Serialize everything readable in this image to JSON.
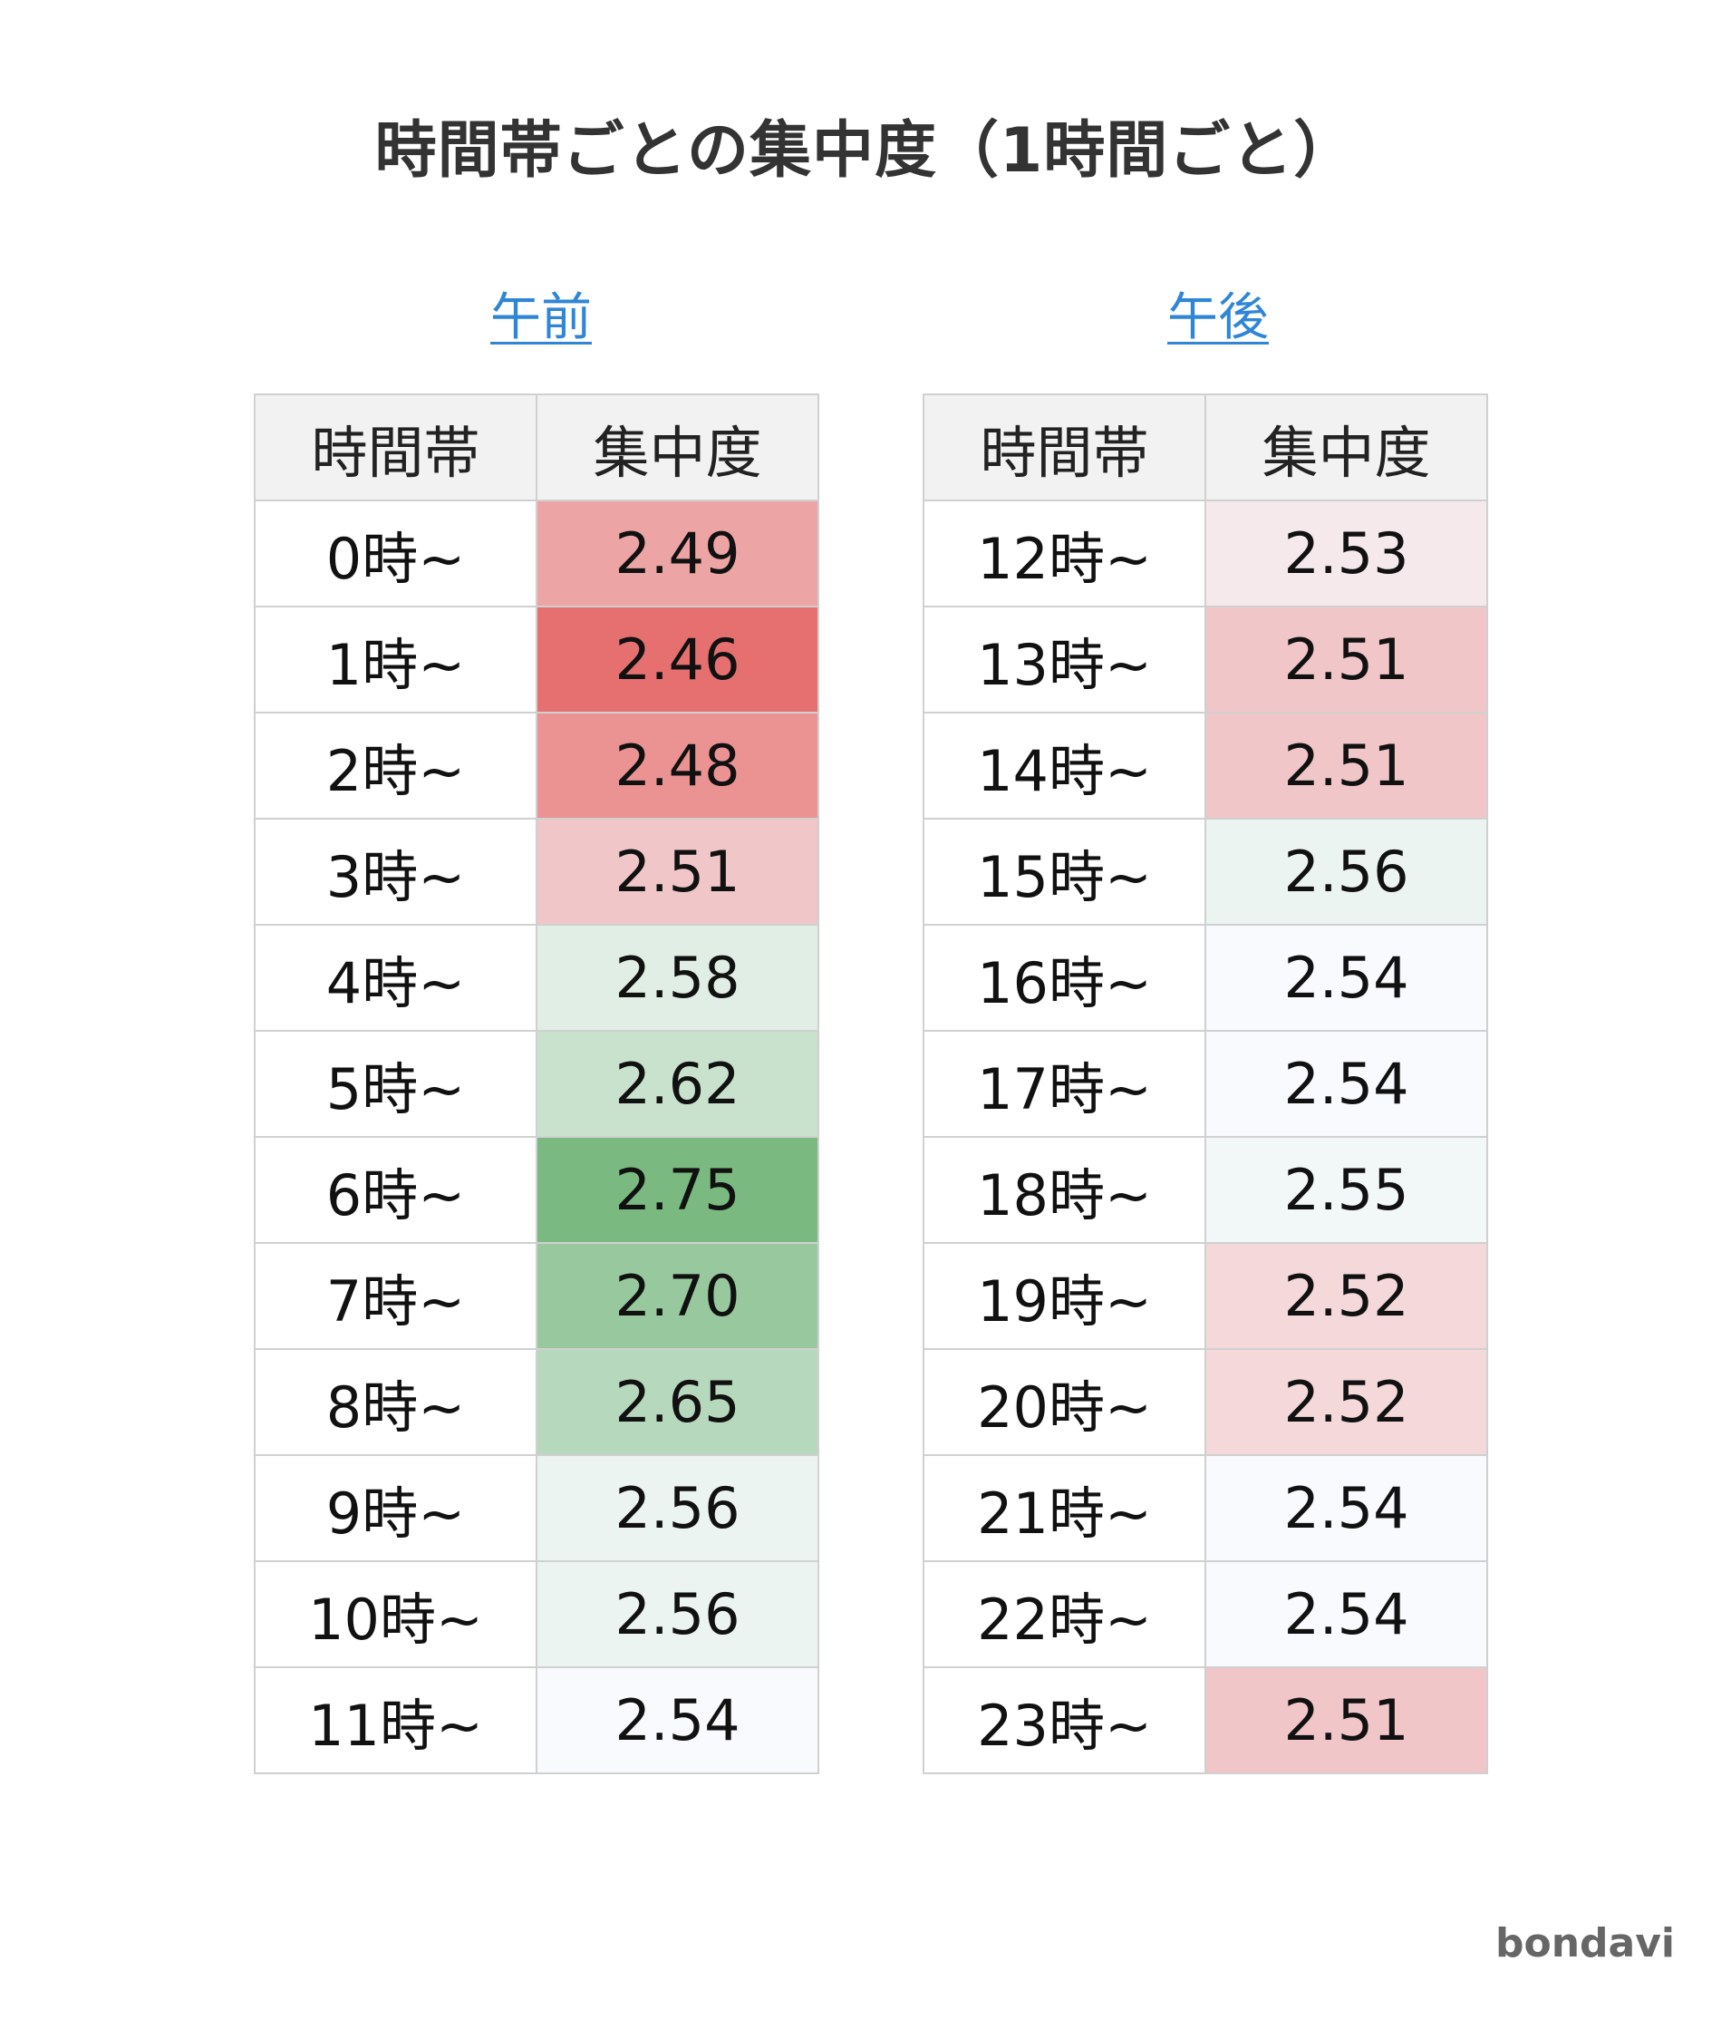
{
  "title": "時間帯ごとの集中度（1時間ごと）",
  "brand": "bondavi",
  "colors": {
    "low": "#e67070",
    "mid": "#f8fafd",
    "high": "#7aba80",
    "header_bg": "#f2f2f2",
    "link": "#2f86d6"
  },
  "chart_data": {
    "type": "table",
    "title": "時間帯ごとの集中度（1時間ごと）",
    "color_scale": {
      "min": 2.46,
      "mid": 2.54,
      "max": 2.75
    },
    "tables": [
      {
        "label": "午前",
        "headers": [
          "時間帯",
          "集中度"
        ],
        "rows": [
          {
            "time": "0時~",
            "value": "2.49"
          },
          {
            "time": "1時~",
            "value": "2.46"
          },
          {
            "time": "2時~",
            "value": "2.48"
          },
          {
            "time": "3時~",
            "value": "2.51"
          },
          {
            "time": "4時~",
            "value": "2.58"
          },
          {
            "time": "5時~",
            "value": "2.62"
          },
          {
            "time": "6時~",
            "value": "2.75"
          },
          {
            "time": "7時~",
            "value": "2.70"
          },
          {
            "time": "8時~",
            "value": "2.65"
          },
          {
            "time": "9時~",
            "value": "2.56"
          },
          {
            "time": "10時~",
            "value": "2.56"
          },
          {
            "time": "11時~",
            "value": "2.54"
          }
        ]
      },
      {
        "label": "午後",
        "headers": [
          "時間帯",
          "集中度"
        ],
        "rows": [
          {
            "time": "12時~",
            "value": "2.53"
          },
          {
            "time": "13時~",
            "value": "2.51"
          },
          {
            "time": "14時~",
            "value": "2.51"
          },
          {
            "time": "15時~",
            "value": "2.56"
          },
          {
            "time": "16時~",
            "value": "2.54"
          },
          {
            "time": "17時~",
            "value": "2.54"
          },
          {
            "time": "18時~",
            "value": "2.55"
          },
          {
            "time": "19時~",
            "value": "2.52"
          },
          {
            "time": "20時~",
            "value": "2.52"
          },
          {
            "time": "21時~",
            "value": "2.54"
          },
          {
            "time": "22時~",
            "value": "2.54"
          },
          {
            "time": "23時~",
            "value": "2.51"
          }
        ]
      }
    ]
  }
}
